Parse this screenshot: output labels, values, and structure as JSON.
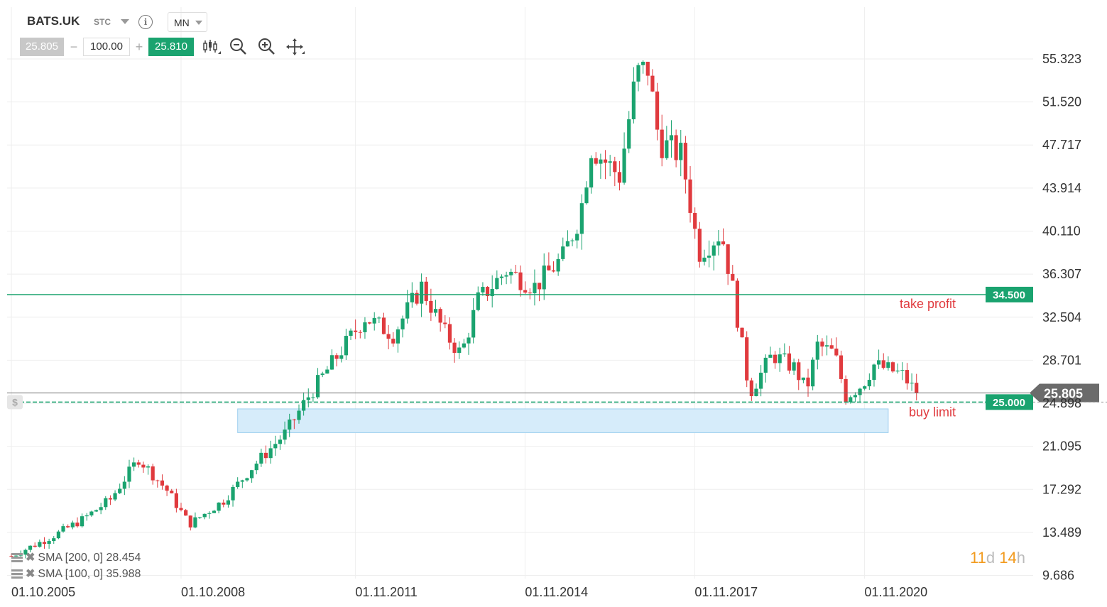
{
  "header": {
    "symbol": "BATS.UK",
    "symbol_type": "STC",
    "info_icon": "info-icon",
    "timeframe": "MN"
  },
  "order_bar": {
    "bid": "25.805",
    "minus": "−",
    "quantity": "100.00",
    "plus": "+",
    "ask": "25.810"
  },
  "toolbar": {
    "icons": [
      "candlestick-type-icon",
      "zoom-out-icon",
      "zoom-in-icon",
      "move-icon"
    ]
  },
  "indicators": [
    {
      "label": "SMA [200, 0] 28.454"
    },
    {
      "label": "SMA [100, 0] 35.988"
    }
  ],
  "countdown": {
    "days": "11",
    "d": "d",
    "hours": "14",
    "h": "h"
  },
  "colors": {
    "up": "#1aa36f",
    "down": "#e03a3e",
    "level": "#1aa36f",
    "grid": "#eeeeee",
    "zone": "#d6ecfa"
  },
  "chart_data": {
    "type": "candlestick",
    "y_axis_ticks": [
      "55.323",
      "51.520",
      "47.717",
      "43.914",
      "40.110",
      "36.307",
      "32.504",
      "28.701",
      "24.898",
      "21.095",
      "17.292",
      "13.489",
      "9.686"
    ],
    "ylim": [
      9.686,
      57.0
    ],
    "x_axis_ticks": [
      "01.10.2005",
      "01.10.2008",
      "01.11.2011",
      "01.11.2014",
      "01.11.2017",
      "01.11.2020"
    ],
    "levels": [
      {
        "price": 34.5,
        "label": "34.500",
        "annotation": "take profit"
      },
      {
        "price": 25.0,
        "label": "25.000",
        "annotation": "buy limit"
      }
    ],
    "current_price": {
      "price": 25.805,
      "label": "25.805"
    },
    "buy_zone": {
      "low": 22.3,
      "high": 24.4,
      "from": "2009.75",
      "to": "2021.25"
    },
    "close_path": [
      [
        2005.75,
        11.4
      ],
      [
        2006.5,
        13.2
      ],
      [
        2007.0,
        14.6
      ],
      [
        2007.5,
        16.4
      ],
      [
        2008.0,
        20.0
      ],
      [
        2008.5,
        17.2
      ],
      [
        2008.9,
        14.2
      ],
      [
        2009.5,
        16.3
      ],
      [
        2010.0,
        19.2
      ],
      [
        2010.6,
        22.3
      ],
      [
        2011.0,
        25.5
      ],
      [
        2011.5,
        29.0
      ],
      [
        2012.0,
        32.5
      ],
      [
        2012.5,
        31.0
      ],
      [
        2013.0,
        35.2
      ],
      [
        2013.4,
        31.2
      ],
      [
        2013.7,
        29.2
      ],
      [
        2014.0,
        34.0
      ],
      [
        2014.5,
        36.6
      ],
      [
        2015.0,
        35.2
      ],
      [
        2015.5,
        37.8
      ],
      [
        2015.8,
        41.5
      ],
      [
        2016.0,
        47.5
      ],
      [
        2016.5,
        45.0
      ],
      [
        2016.8,
        54.0
      ],
      [
        2017.0,
        54.5
      ],
      [
        2017.2,
        48.0
      ],
      [
        2017.6,
        46.8
      ],
      [
        2017.9,
        38.2
      ],
      [
        2018.3,
        40.0
      ],
      [
        2018.5,
        35.0
      ],
      [
        2018.8,
        25.8
      ],
      [
        2019.2,
        29.2
      ],
      [
        2019.6,
        28.0
      ],
      [
        2019.8,
        26.0
      ],
      [
        2020.0,
        30.0
      ],
      [
        2020.3,
        29.3
      ],
      [
        2020.5,
        25.5
      ],
      [
        2020.8,
        26.6
      ],
      [
        2021.0,
        28.3
      ],
      [
        2021.3,
        27.8
      ],
      [
        2021.5,
        27.4
      ],
      [
        2021.75,
        25.8
      ]
    ]
  }
}
